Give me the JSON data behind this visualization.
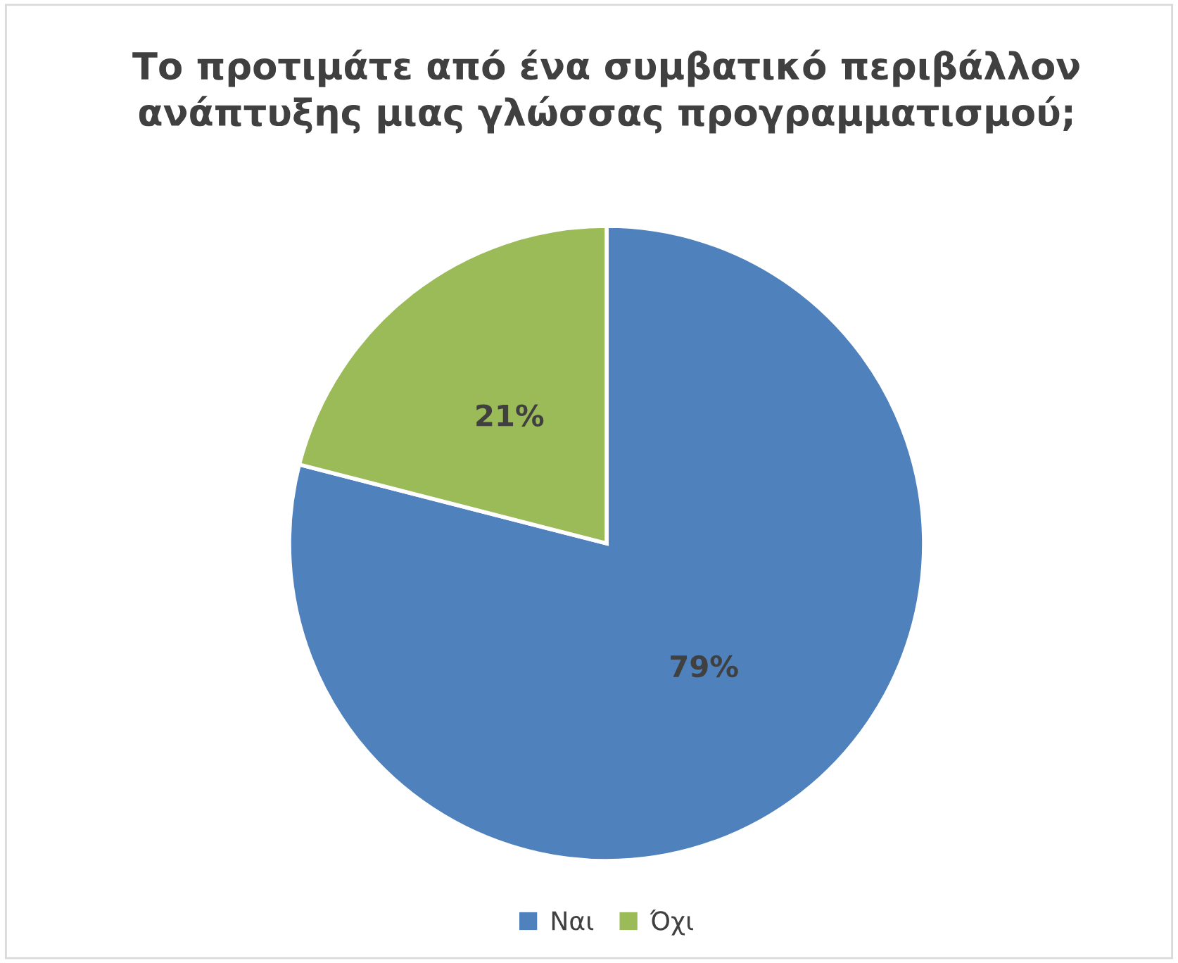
{
  "chart_data": {
    "type": "pie",
    "title": "Το προτιμάτε από ένα συμβατικό περιβάλλον\nανάπτυξης μιας γλώσσας προγραμματισμού;",
    "categories": [
      "Ναι",
      "Όχι"
    ],
    "values": [
      79,
      21
    ],
    "colors": [
      "#4f81bd",
      "#9bbb59"
    ],
    "value_labels": [
      "79%",
      "21%"
    ],
    "legend": "bottom"
  }
}
